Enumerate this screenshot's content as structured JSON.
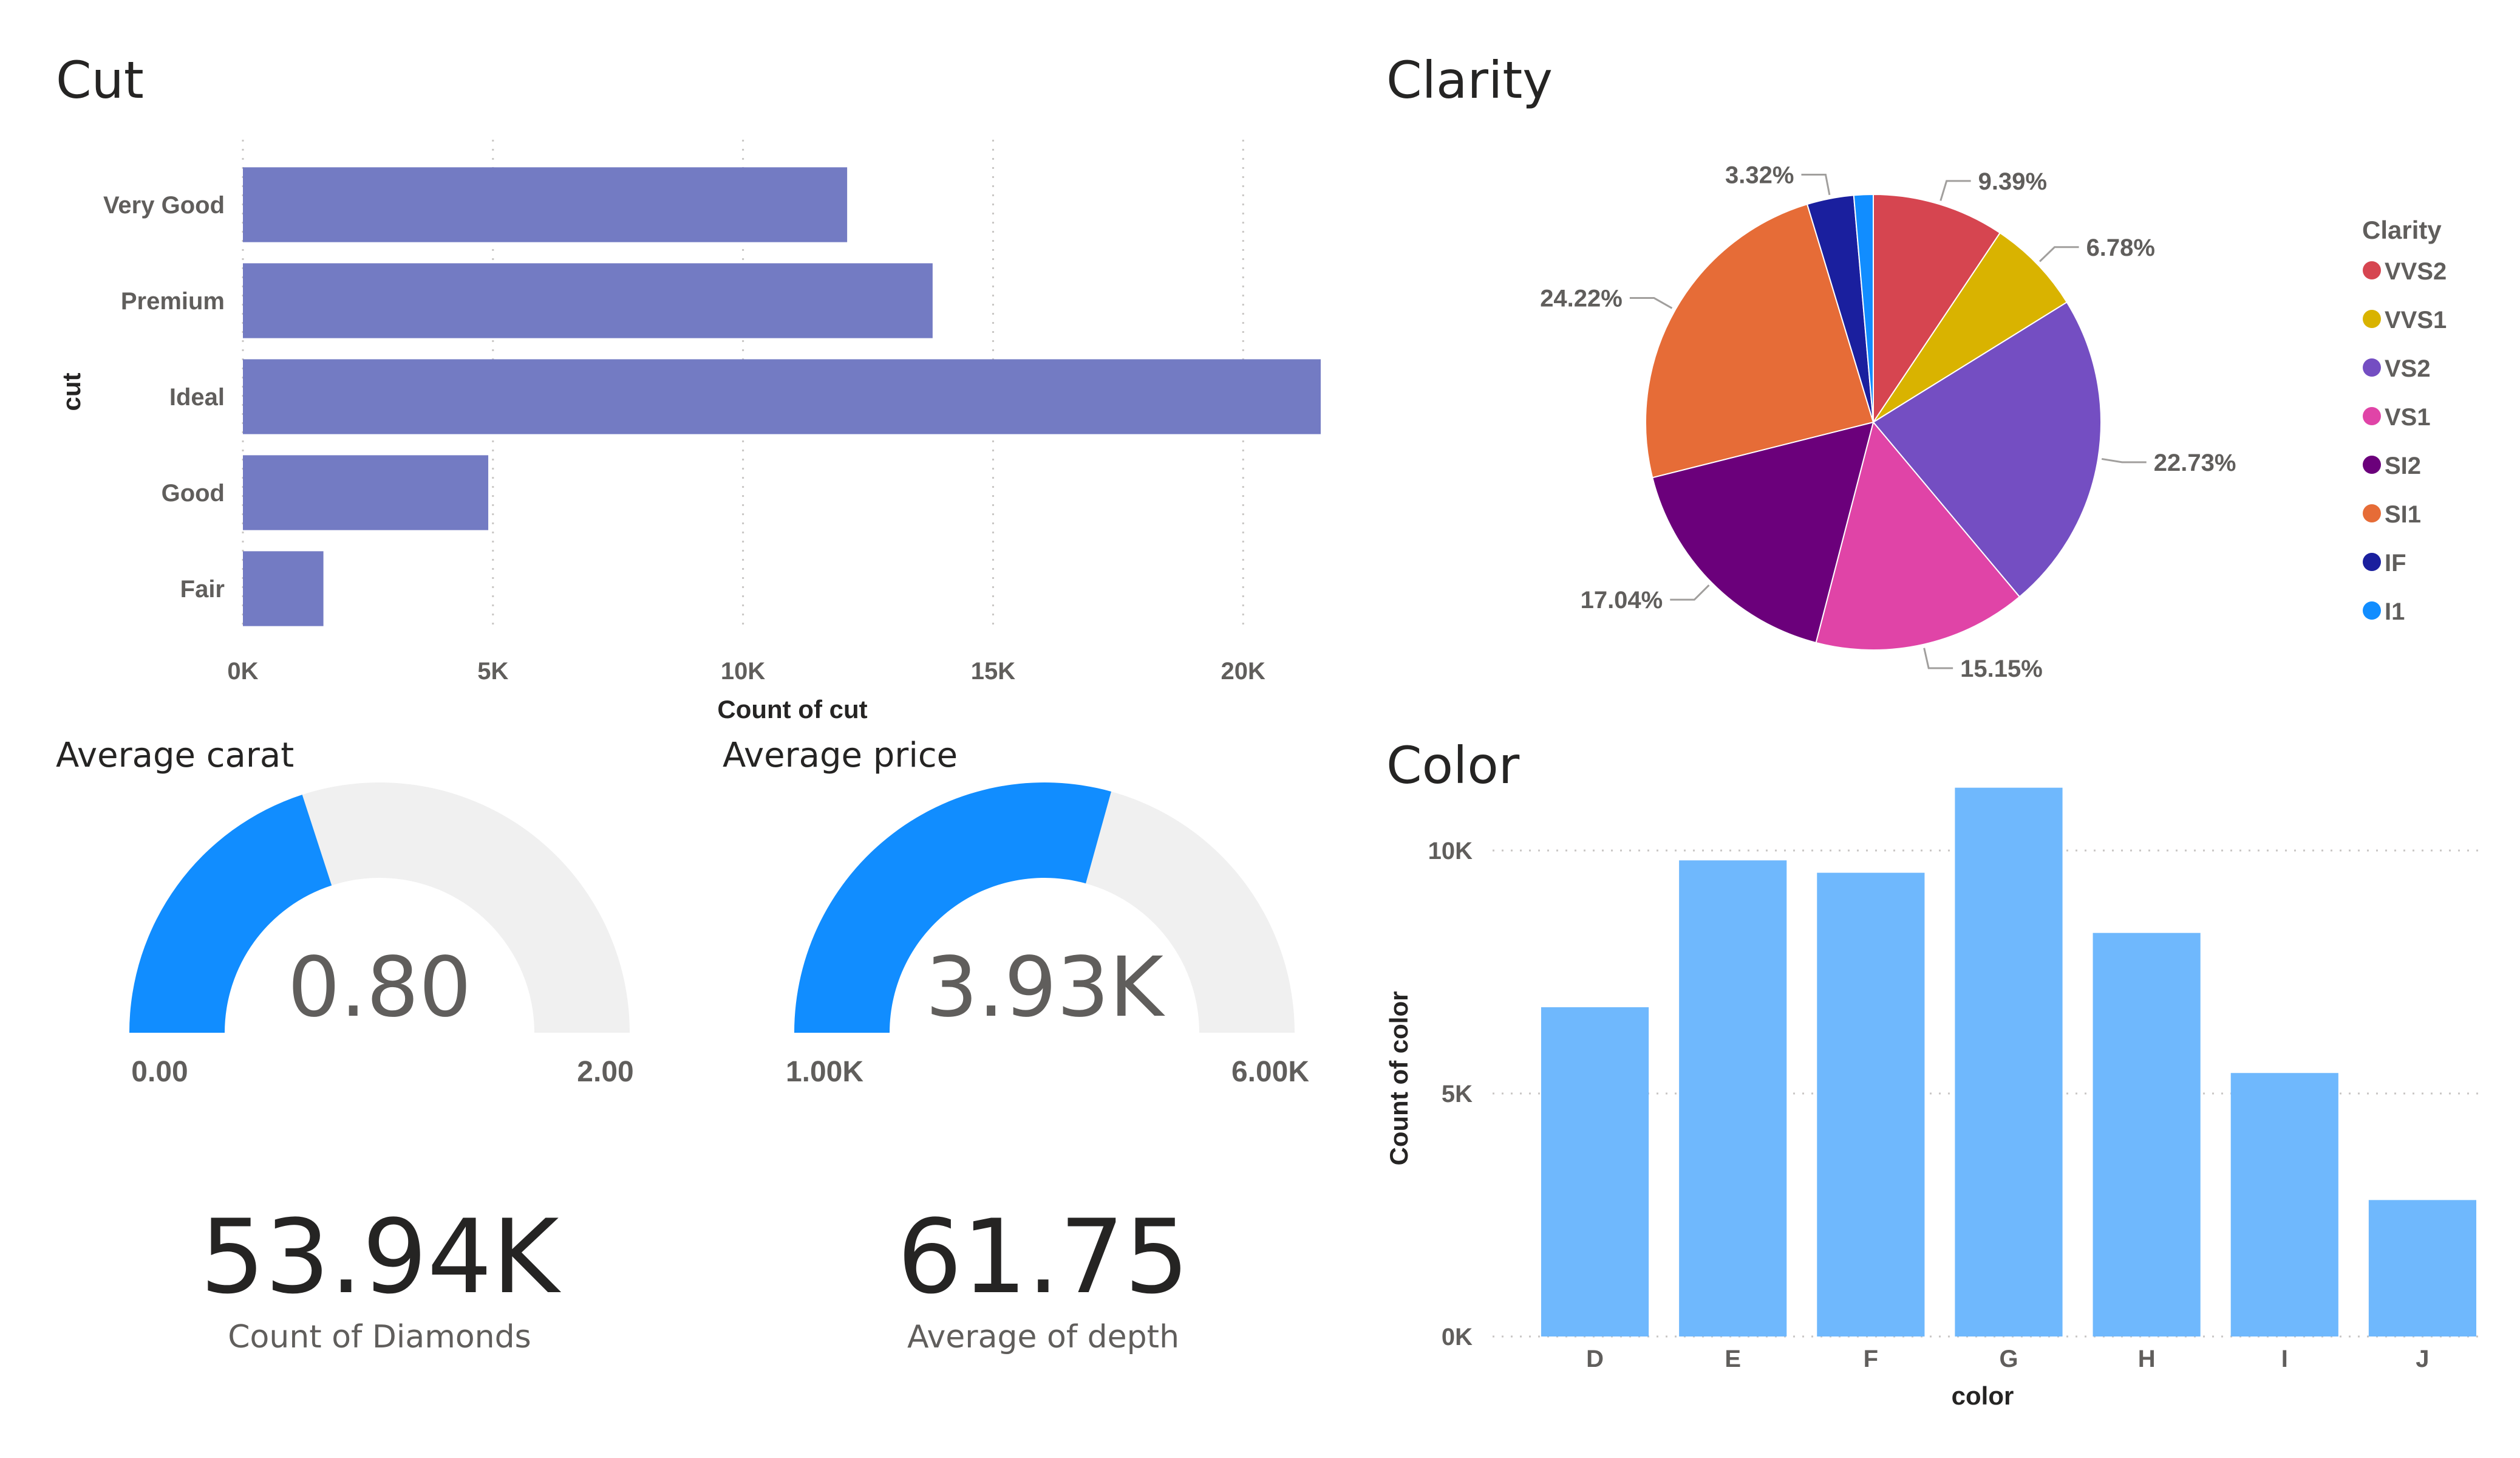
{
  "cut_visual": {
    "title": "Cut",
    "chart_data": {
      "type": "bar",
      "orientation": "horizontal",
      "categories": [
        "Very Good",
        "Premium",
        "Ideal",
        "Good",
        "Fair"
      ],
      "values": [
        12082,
        13791,
        21551,
        4906,
        1610
      ],
      "xlim": [
        0,
        21551
      ],
      "xticks": [
        0,
        5000,
        10000,
        15000,
        20000
      ],
      "xtick_labels": [
        "0K",
        "5K",
        "10K",
        "15K",
        "20K"
      ],
      "xlabel": "Count of cut",
      "ylabel": "cut",
      "color": "#737bc3",
      "grid": true
    }
  },
  "clarity_visual": {
    "title": "Clarity",
    "chart_data": {
      "type": "pie",
      "categories": [
        "VVS2",
        "VVS1",
        "VS2",
        "VS1",
        "SI2",
        "SI1",
        "IF",
        "I1"
      ],
      "values": [
        9.39,
        6.78,
        22.73,
        15.15,
        17.04,
        24.22,
        3.32,
        1.37
      ],
      "labels": [
        "9.39%",
        "6.78%",
        "22.73%",
        "15.15%",
        "17.04%",
        "24.22%",
        "3.32%",
        ""
      ],
      "colors": [
        "#d64550",
        "#d9b300",
        "#744ec2",
        "#e044a7",
        "#6b007b",
        "#e66c37",
        "#1a1f9e",
        "#118dff"
      ],
      "legend_title": "Clarity",
      "legend_position": "right"
    }
  },
  "color_visual": {
    "title": "Color",
    "chart_data": {
      "type": "bar",
      "orientation": "vertical",
      "categories": [
        "D",
        "E",
        "F",
        "G",
        "H",
        "I",
        "J"
      ],
      "values": [
        6775,
        9797,
        9542,
        11292,
        8304,
        5422,
        2808
      ],
      "ylim": [
        0,
        12000
      ],
      "yticks": [
        0,
        5000,
        10000
      ],
      "ytick_labels": [
        "0K",
        "5K",
        "10K"
      ],
      "xlabel": "color",
      "ylabel": "Count of color",
      "color": "#6fb8fd",
      "grid": true
    }
  },
  "gauges": [
    {
      "title": "Average carat",
      "value": 0.8,
      "value_label": "0.80",
      "min": 0,
      "max": 2,
      "min_label": "0.00",
      "max_label": "2.00",
      "fill_color": "#118dff",
      "track_color": "#f0f0f0"
    },
    {
      "title": "Average price",
      "value": 3930,
      "value_label": "3.93K",
      "min": 1000,
      "max": 6000,
      "min_label": "1.00K",
      "max_label": "6.00K",
      "fill_color": "#118dff",
      "track_color": "#f0f0f0"
    }
  ],
  "cards": [
    {
      "value": "53.94K",
      "label": "Count of Diamonds"
    },
    {
      "value": "61.75",
      "label": "Average of depth"
    }
  ]
}
